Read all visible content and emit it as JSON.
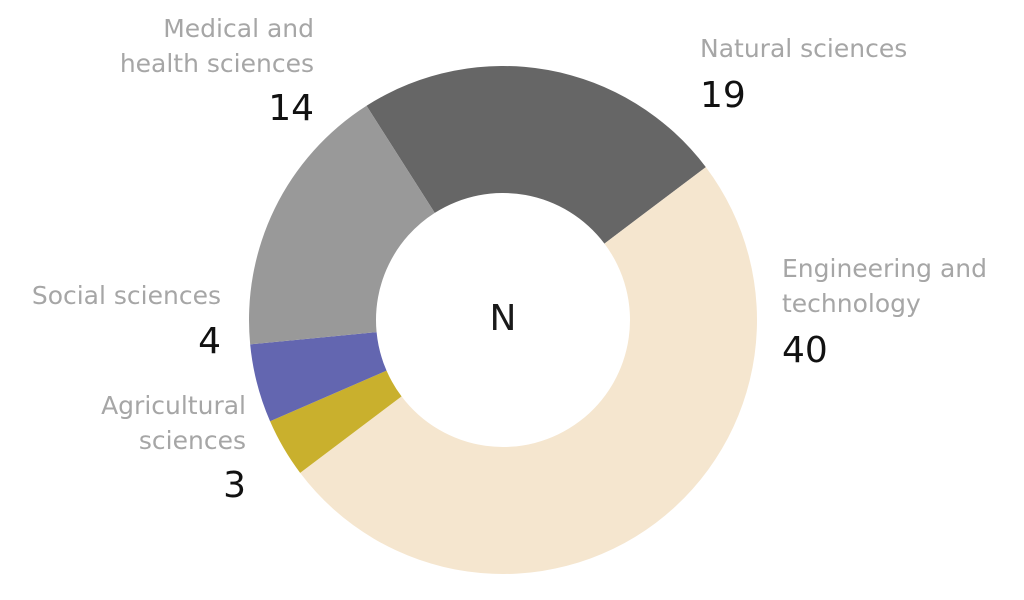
{
  "chart_data": {
    "type": "pie",
    "subtype": "donut",
    "center_label": "N",
    "categories": [
      "Natural sciences",
      "Engineering and technology",
      "Agricultural sciences",
      "Social sciences",
      "Medical and health sciences"
    ],
    "values": [
      19,
      40,
      3,
      4,
      14
    ],
    "colors": [
      "#666666",
      "#f5e6cf",
      "#c9b02d",
      "#6366b0",
      "#999999"
    ],
    "labels": [
      {
        "category": "Natural sciences",
        "lines": [
          "Natural sciences"
        ],
        "value_text": "19"
      },
      {
        "category": "Engineering and technology",
        "lines": [
          "Engineering and",
          "technology"
        ],
        "value_text": "40"
      },
      {
        "category": "Agricultural sciences",
        "lines": [
          "Agricultural",
          "sciences"
        ],
        "value_text": "3"
      },
      {
        "category": "Social sciences",
        "lines": [
          "Social sciences"
        ],
        "value_text": "4"
      },
      {
        "category": "Medical and health sciences",
        "lines": [
          "Medical and",
          "health sciences"
        ],
        "value_text": "14"
      }
    ],
    "legend": "none"
  }
}
